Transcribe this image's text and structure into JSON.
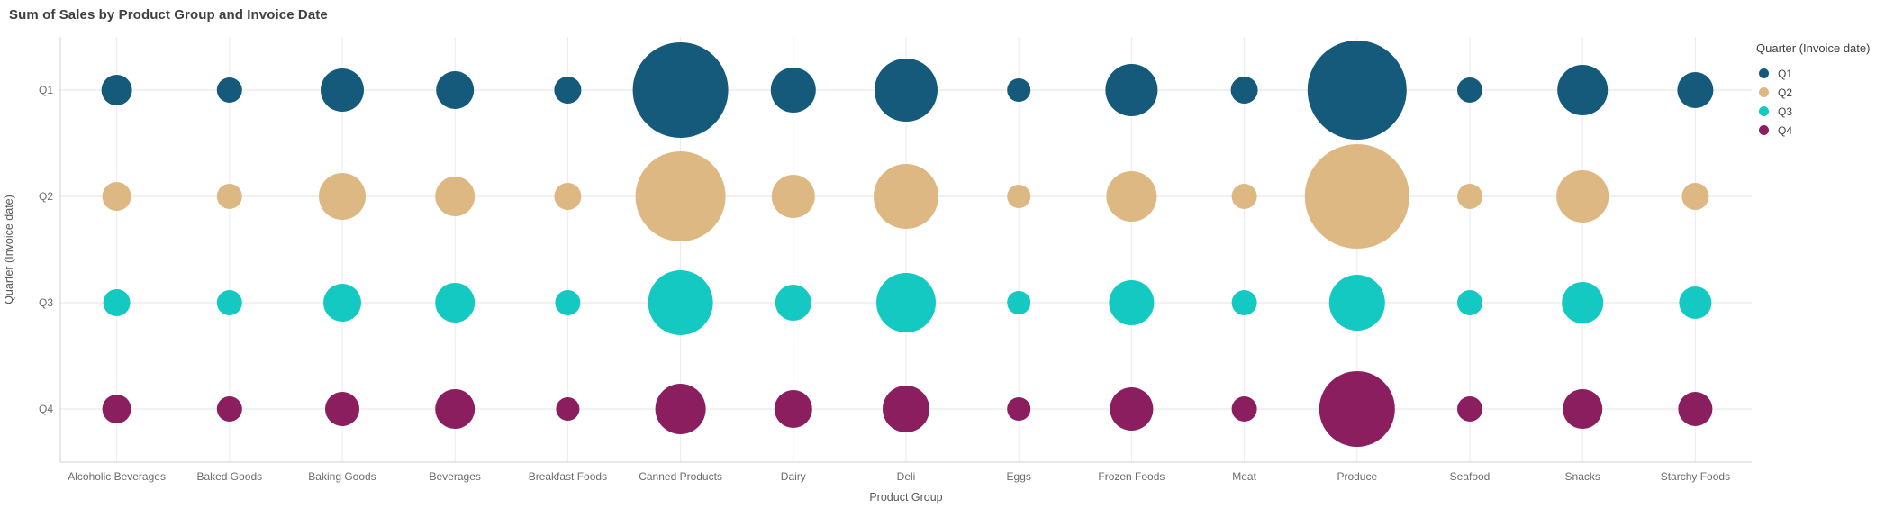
{
  "title": "Sum of Sales by Product Group and Invoice Date",
  "legend": {
    "title": "Quarter (Invoice date)"
  },
  "axes": {
    "x_label": "Product Group",
    "y_label": "Quarter (Invoice date)"
  },
  "colors": {
    "q1": "#155A7B",
    "q2": "#DEB883",
    "q3": "#13C9C2",
    "q4": "#8B1E5F",
    "grid_vertical": "#ebebeb",
    "grid_horizontal": "#e3e3e3",
    "axis_line": "#d0d0d0",
    "tick_text": "#6b6b6b",
    "axis_title_text": "#595959",
    "title_text": "#404040"
  },
  "chart_data": {
    "type": "scatter",
    "subtype": "bubble",
    "title": "Sum of Sales by Product Group and Invoice Date",
    "xlabel": "Product Group",
    "ylabel": "Quarter (Invoice date)",
    "legend_title": "Quarter (Invoice date)",
    "legend_position": "right",
    "grid": true,
    "value_labels_shown": false,
    "size_encoding": "Sum of Sales (bubble area; no numeric labels visible, radii below are pixel estimates)",
    "categories": [
      "Alcoholic Beverages",
      "Baked Goods",
      "Baking Goods",
      "Beverages",
      "Breakfast Foods",
      "Canned Products",
      "Dairy",
      "Deli",
      "Eggs",
      "Frozen Foods",
      "Meat",
      "Produce",
      "Seafood",
      "Snacks",
      "Starchy Foods"
    ],
    "rows": [
      "Q1",
      "Q2",
      "Q3",
      "Q4"
    ],
    "series": [
      {
        "name": "Q1",
        "color": "#155A7B",
        "bubble_radius_px": [
          17,
          14,
          24,
          21,
          15,
          53,
          25,
          35,
          13,
          29,
          15,
          55,
          14,
          28,
          20
        ]
      },
      {
        "name": "Q2",
        "color": "#DEB883",
        "bubble_radius_px": [
          16,
          14,
          26,
          22,
          15,
          50,
          24,
          36,
          13,
          28,
          14,
          58,
          14,
          29,
          15
        ]
      },
      {
        "name": "Q3",
        "color": "#13C9C2",
        "bubble_radius_px": [
          15,
          14,
          21,
          22,
          14,
          36,
          20,
          33,
          13,
          25,
          14,
          31,
          14,
          23,
          18
        ]
      },
      {
        "name": "Q4",
        "color": "#8B1E5F",
        "bubble_radius_px": [
          16,
          14,
          19,
          22,
          13,
          28,
          21,
          26,
          13,
          24,
          14,
          42,
          14,
          22,
          19
        ]
      }
    ]
  }
}
